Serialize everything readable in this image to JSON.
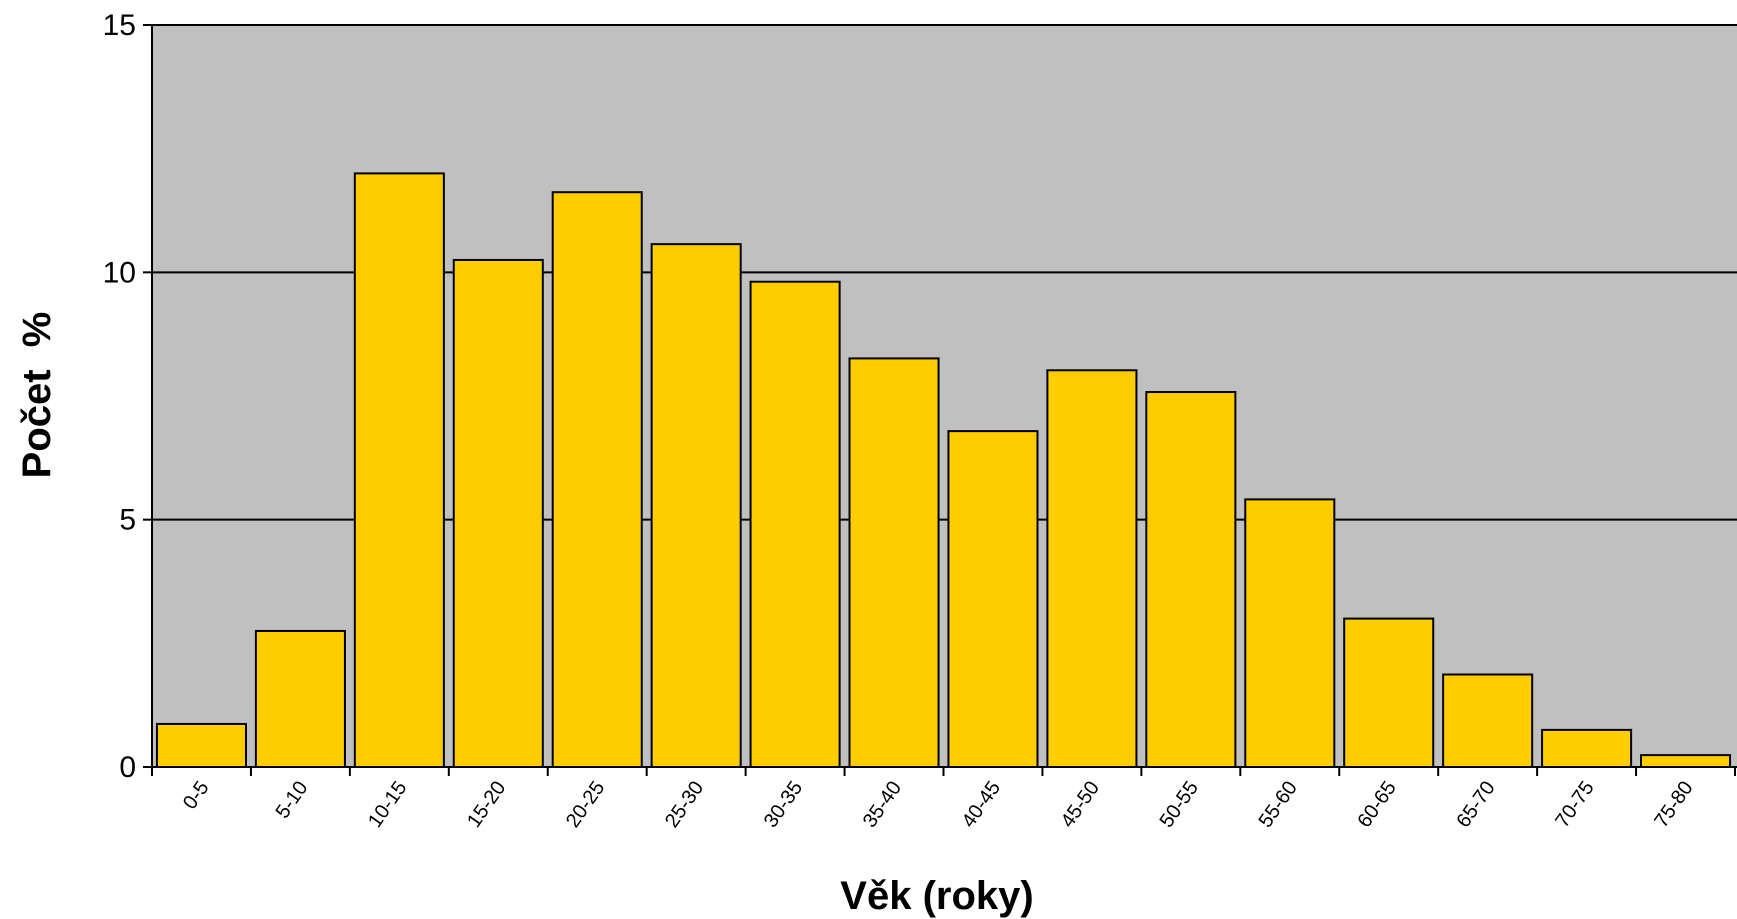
{
  "chart_data": {
    "type": "bar",
    "categories": [
      "0-5",
      "5-10",
      "10-15",
      "15-20",
      "20-25",
      "25-30",
      "30-35",
      "35-40",
      "40-45",
      "45-50",
      "50-55",
      "55-60",
      "60-65",
      "65-70",
      "70-75",
      "75-80"
    ],
    "values": [
      0.87,
      2.75,
      12.0,
      10.25,
      11.62,
      10.57,
      9.81,
      8.26,
      6.79,
      8.02,
      7.58,
      5.41,
      3.0,
      1.87,
      0.75,
      0.24
    ],
    "xlabel": "Věk (roky)",
    "ylabel": "Počet  %",
    "ylim": [
      0,
      15
    ],
    "yticks": [
      0,
      5,
      10,
      15
    ],
    "grid": true,
    "colors": {
      "bar_fill": "#FFCC00",
      "bar_stroke": "#000000",
      "plot_background": "#C0C0C0",
      "gridline": "#000000"
    }
  }
}
